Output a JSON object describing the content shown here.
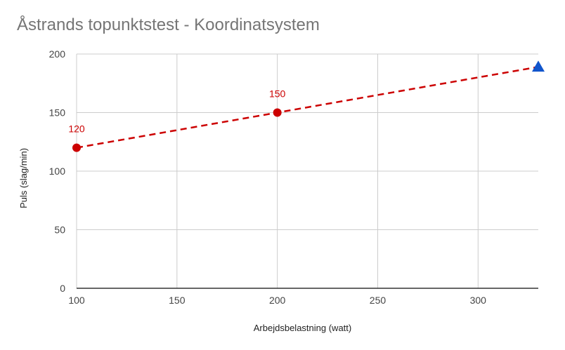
{
  "chart_data": {
    "type": "scatter",
    "title": "Åstrands topunktstest - Koordinatsystem",
    "xlabel": "Arbejdsbelastning (watt)",
    "ylabel": "Puls (slag/min)",
    "xlim": [
      100,
      330
    ],
    "ylim": [
      0,
      200
    ],
    "x_ticks": [
      100,
      150,
      200,
      250,
      300
    ],
    "y_ticks": [
      0,
      50,
      100,
      150,
      200
    ],
    "grid": true,
    "legend": "none",
    "series": [
      {
        "style": "dashed-line-markers",
        "color": "#cc0000",
        "points": [
          {
            "x": 100,
            "y": 120,
            "label": "120"
          },
          {
            "x": 200,
            "y": 150,
            "label": "150"
          }
        ],
        "trend_end": {
          "x": 330,
          "y": 189
        }
      },
      {
        "style": "triangle-marker",
        "color": "#1155cc",
        "points": [
          {
            "x": 330,
            "y": 189
          }
        ]
      }
    ]
  }
}
